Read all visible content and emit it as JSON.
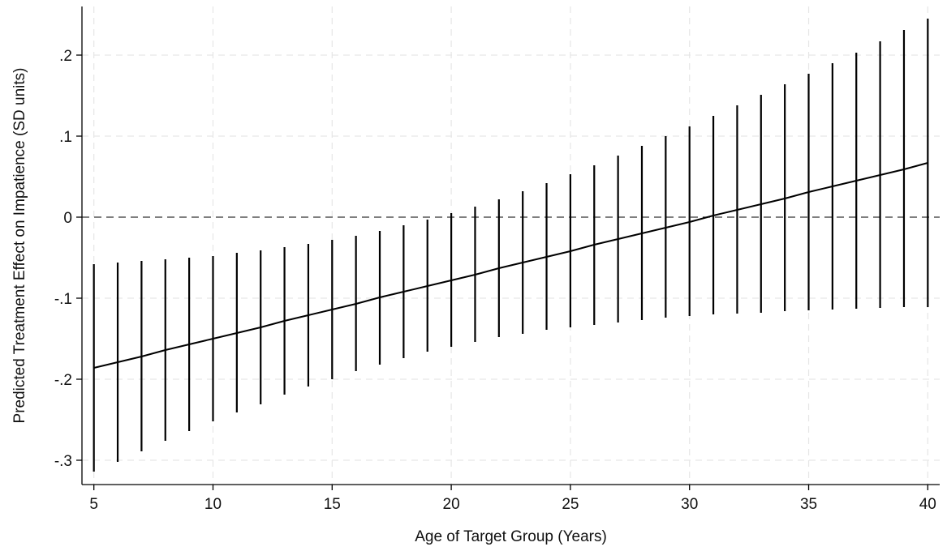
{
  "chart_data": {
    "type": "line",
    "title": "",
    "xlabel": "Age of Target Group (Years)",
    "ylabel": "Predicted Treatment Effect on Impatience (SD units)",
    "xlim": [
      4.5,
      40.5
    ],
    "ylim": [
      -0.33,
      0.26
    ],
    "grid": true,
    "x_ticks": [
      5,
      10,
      15,
      20,
      25,
      30,
      35,
      40
    ],
    "x_tick_labels": [
      "5",
      "10",
      "15",
      "20",
      "25",
      "30",
      "35",
      "40"
    ],
    "y_ticks": [
      -0.3,
      -0.2,
      -0.1,
      0,
      0.1,
      0.2
    ],
    "y_tick_labels": [
      "-.3",
      "-.2",
      "-.1",
      "0",
      ".1",
      ".2"
    ],
    "reference_line": {
      "y": 0,
      "style": "dashed"
    },
    "series": [
      {
        "x": [
          5,
          6,
          7,
          8,
          9,
          10,
          11,
          12,
          13,
          14,
          15,
          16,
          17,
          18,
          19,
          20,
          21,
          22,
          23,
          24,
          25,
          26,
          27,
          28,
          29,
          30,
          31,
          32,
          33,
          34,
          35,
          36,
          37,
          38,
          39,
          40
        ],
        "y": [
          -0.186,
          -0.179,
          -0.172,
          -0.164,
          -0.157,
          -0.15,
          -0.143,
          -0.136,
          -0.128,
          -0.121,
          -0.114,
          -0.107,
          -0.099,
          -0.092,
          -0.085,
          -0.078,
          -0.071,
          -0.063,
          -0.056,
          -0.049,
          -0.042,
          -0.034,
          -0.027,
          -0.02,
          -0.013,
          -0.006,
          0.002,
          0.009,
          0.016,
          0.023,
          0.031,
          0.038,
          0.045,
          0.052,
          0.059,
          0.067
        ],
        "ci_lower": [
          -0.314,
          -0.302,
          -0.289,
          -0.276,
          -0.264,
          -0.252,
          -0.241,
          -0.231,
          -0.219,
          -0.209,
          -0.2,
          -0.19,
          -0.182,
          -0.174,
          -0.166,
          -0.16,
          -0.154,
          -0.148,
          -0.144,
          -0.139,
          -0.136,
          -0.133,
          -0.13,
          -0.127,
          -0.124,
          -0.122,
          -0.12,
          -0.119,
          -0.118,
          -0.116,
          -0.115,
          -0.114,
          -0.113,
          -0.112,
          -0.111,
          -0.111
        ],
        "ci_upper": [
          -0.058,
          -0.056,
          -0.054,
          -0.052,
          -0.05,
          -0.048,
          -0.044,
          -0.041,
          -0.037,
          -0.033,
          -0.028,
          -0.023,
          -0.017,
          -0.01,
          -0.003,
          0.005,
          0.013,
          0.022,
          0.032,
          0.042,
          0.053,
          0.064,
          0.076,
          0.088,
          0.1,
          0.112,
          0.125,
          0.138,
          0.151,
          0.164,
          0.177,
          0.19,
          0.203,
          0.217,
          0.231,
          0.245
        ]
      }
    ]
  }
}
